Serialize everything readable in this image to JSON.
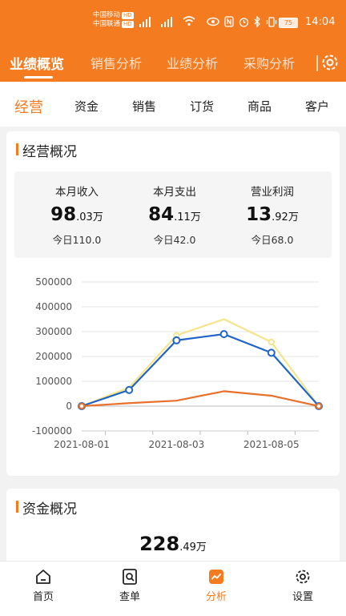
{
  "status_bar": {
    "carrier1": "中国移动",
    "carrier2": "中国联通",
    "hd": "HD",
    "battery": "75",
    "time": "14:04"
  },
  "top_tabs": [
    {
      "label": "业绩概览",
      "active": true
    },
    {
      "label": "销售分析",
      "active": false
    },
    {
      "label": "业绩分析",
      "active": false
    },
    {
      "label": "采购分析",
      "active": false
    }
  ],
  "sub_tabs": [
    {
      "label": "经营",
      "active": true
    },
    {
      "label": "资金",
      "active": false
    },
    {
      "label": "销售",
      "active": false
    },
    {
      "label": "订货",
      "active": false
    },
    {
      "label": "商品",
      "active": false
    },
    {
      "label": "客户",
      "active": false
    }
  ],
  "overview": {
    "title": "经营概况",
    "metrics": [
      {
        "label": "本月收入",
        "int": "98",
        "dec": ".03",
        "unit": "万",
        "today": "今日110.0"
      },
      {
        "label": "本月支出",
        "int": "84",
        "dec": ".11",
        "unit": "万",
        "today": "今日42.0"
      },
      {
        "label": "营业利润",
        "int": "13",
        "dec": ".92",
        "unit": "万",
        "today": "今日68.0"
      }
    ]
  },
  "chart_data": {
    "type": "line",
    "x": [
      "2021-08-01",
      "2021-08-02",
      "2021-08-03",
      "2021-08-04",
      "2021-08-05",
      "2021-08-06"
    ],
    "x_tick_labels": [
      "2021-08-01",
      "2021-08-03",
      "2021-08-05"
    ],
    "y_ticks": [
      "500000",
      "400000",
      "300000",
      "200000",
      "100000",
      "0",
      "-100000"
    ],
    "ylim": [
      -100000,
      500000
    ],
    "grid": true,
    "series": [
      {
        "color": "#f5e58a",
        "values": [
          0,
          75000,
          285000,
          350000,
          258000,
          0
        ],
        "markers": false
      },
      {
        "color": "#1e64c8",
        "values": [
          0,
          65000,
          265000,
          290000,
          215000,
          0
        ],
        "markers": true
      },
      {
        "color": "#e8702a",
        "values": [
          0,
          12000,
          22000,
          60000,
          42000,
          0
        ],
        "markers": false
      }
    ]
  },
  "funds": {
    "title": "资金概况",
    "int": "228",
    "dec": ".49",
    "unit": "万"
  },
  "bottom_nav": [
    {
      "label": "首页",
      "icon": "home-icon",
      "active": false
    },
    {
      "label": "查单",
      "icon": "search-doc-icon",
      "active": false
    },
    {
      "label": "分析",
      "icon": "chart-icon",
      "active": true
    },
    {
      "label": "设置",
      "icon": "gear-icon",
      "active": false
    }
  ]
}
